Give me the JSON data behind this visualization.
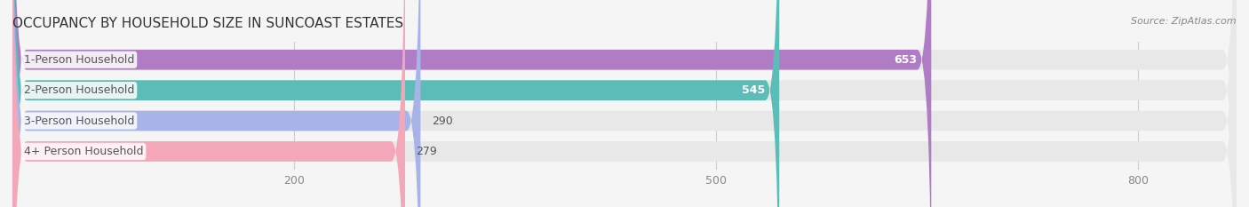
{
  "title": "OCCUPANCY BY HOUSEHOLD SIZE IN SUNCOAST ESTATES",
  "source": "Source: ZipAtlas.com",
  "categories": [
    "1-Person Household",
    "2-Person Household",
    "3-Person Household",
    "4+ Person Household"
  ],
  "values": [
    653,
    545,
    290,
    279
  ],
  "bar_colors": [
    "#b07cc6",
    "#5bbcb8",
    "#a8b4e8",
    "#f4a7b9"
  ],
  "xlim": [
    0,
    870
  ],
  "xticks": [
    200,
    500,
    800
  ],
  "background_color": "#f5f5f5",
  "bar_bg_color": "#e8e8e8",
  "title_fontsize": 11,
  "label_fontsize": 9,
  "value_fontsize": 9
}
